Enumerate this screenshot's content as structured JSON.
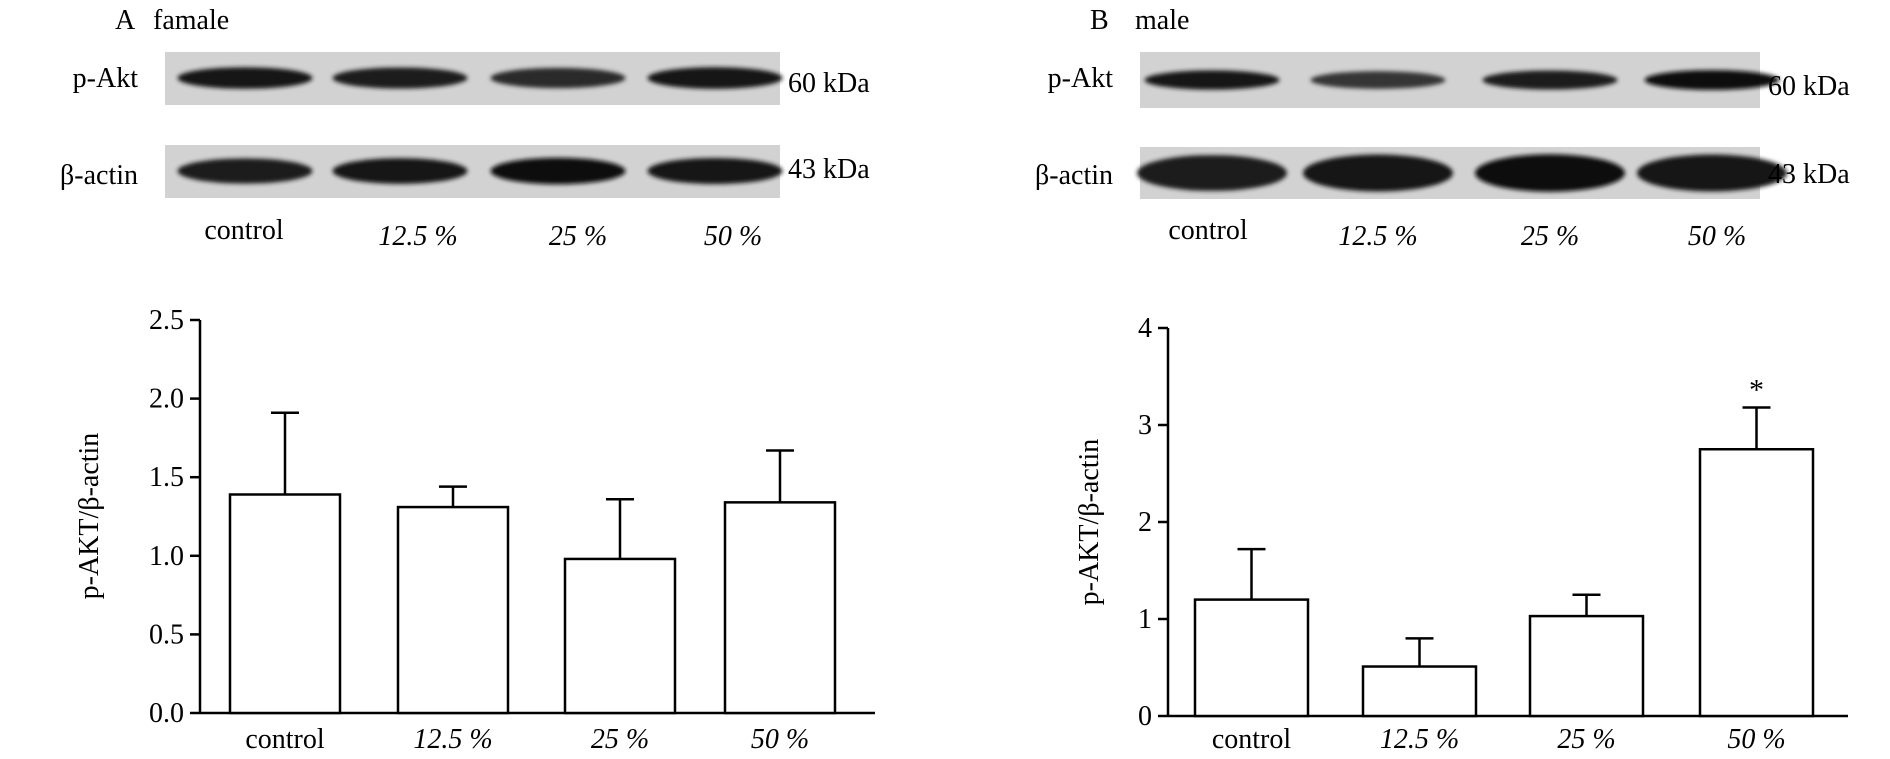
{
  "panels": [
    {
      "letter": "A",
      "sex": "famale",
      "blots": [
        {
          "label": "p-Akt",
          "size": "60 kDa",
          "intensity": [
            0.92,
            0.85,
            0.72,
            0.95
          ]
        },
        {
          "label": "β-actin",
          "size": "43 kDa",
          "intensity": [
            0.85,
            0.9,
            1.0,
            0.95
          ]
        }
      ],
      "lanes": [
        "control",
        "12.5 %",
        "25 %",
        "50 %"
      ]
    },
    {
      "letter": "B",
      "sex": "male",
      "blots": [
        {
          "label": "p-Akt",
          "size": "60 kDa",
          "intensity": [
            0.9,
            0.6,
            0.85,
            1.0
          ]
        },
        {
          "label": "β-actin",
          "size": "43 kDa",
          "intensity": [
            0.85,
            0.95,
            1.0,
            0.95
          ]
        }
      ],
      "lanes": [
        "control",
        "12.5 %",
        "25 %",
        "50 %"
      ]
    }
  ],
  "chart_data": [
    {
      "type": "bar",
      "categories": [
        "control",
        "12.5 %",
        "25 %",
        "50 %"
      ],
      "values": [
        1.39,
        1.31,
        0.98,
        1.34
      ],
      "errors": [
        0.52,
        0.13,
        0.38,
        0.33
      ],
      "annotations": [
        "",
        "",
        "",
        ""
      ],
      "ylabel": "p-AKT/β-actin",
      "ylim": [
        0,
        2.5
      ],
      "yticks": [
        "0.0",
        "0.5",
        "1.0",
        "1.5",
        "2.0",
        "2.5"
      ],
      "grid": false
    },
    {
      "type": "bar",
      "categories": [
        "control",
        "12.5 %",
        "25 %",
        "50 %"
      ],
      "values": [
        1.2,
        0.51,
        1.03,
        2.75
      ],
      "errors": [
        0.52,
        0.29,
        0.22,
        0.43
      ],
      "annotations": [
        "",
        "",
        "",
        "*"
      ],
      "ylabel": "p-AKT/β-actin",
      "ylim": [
        0,
        4
      ],
      "yticks": [
        "0",
        "1",
        "2",
        "3",
        "4"
      ],
      "grid": false
    }
  ]
}
